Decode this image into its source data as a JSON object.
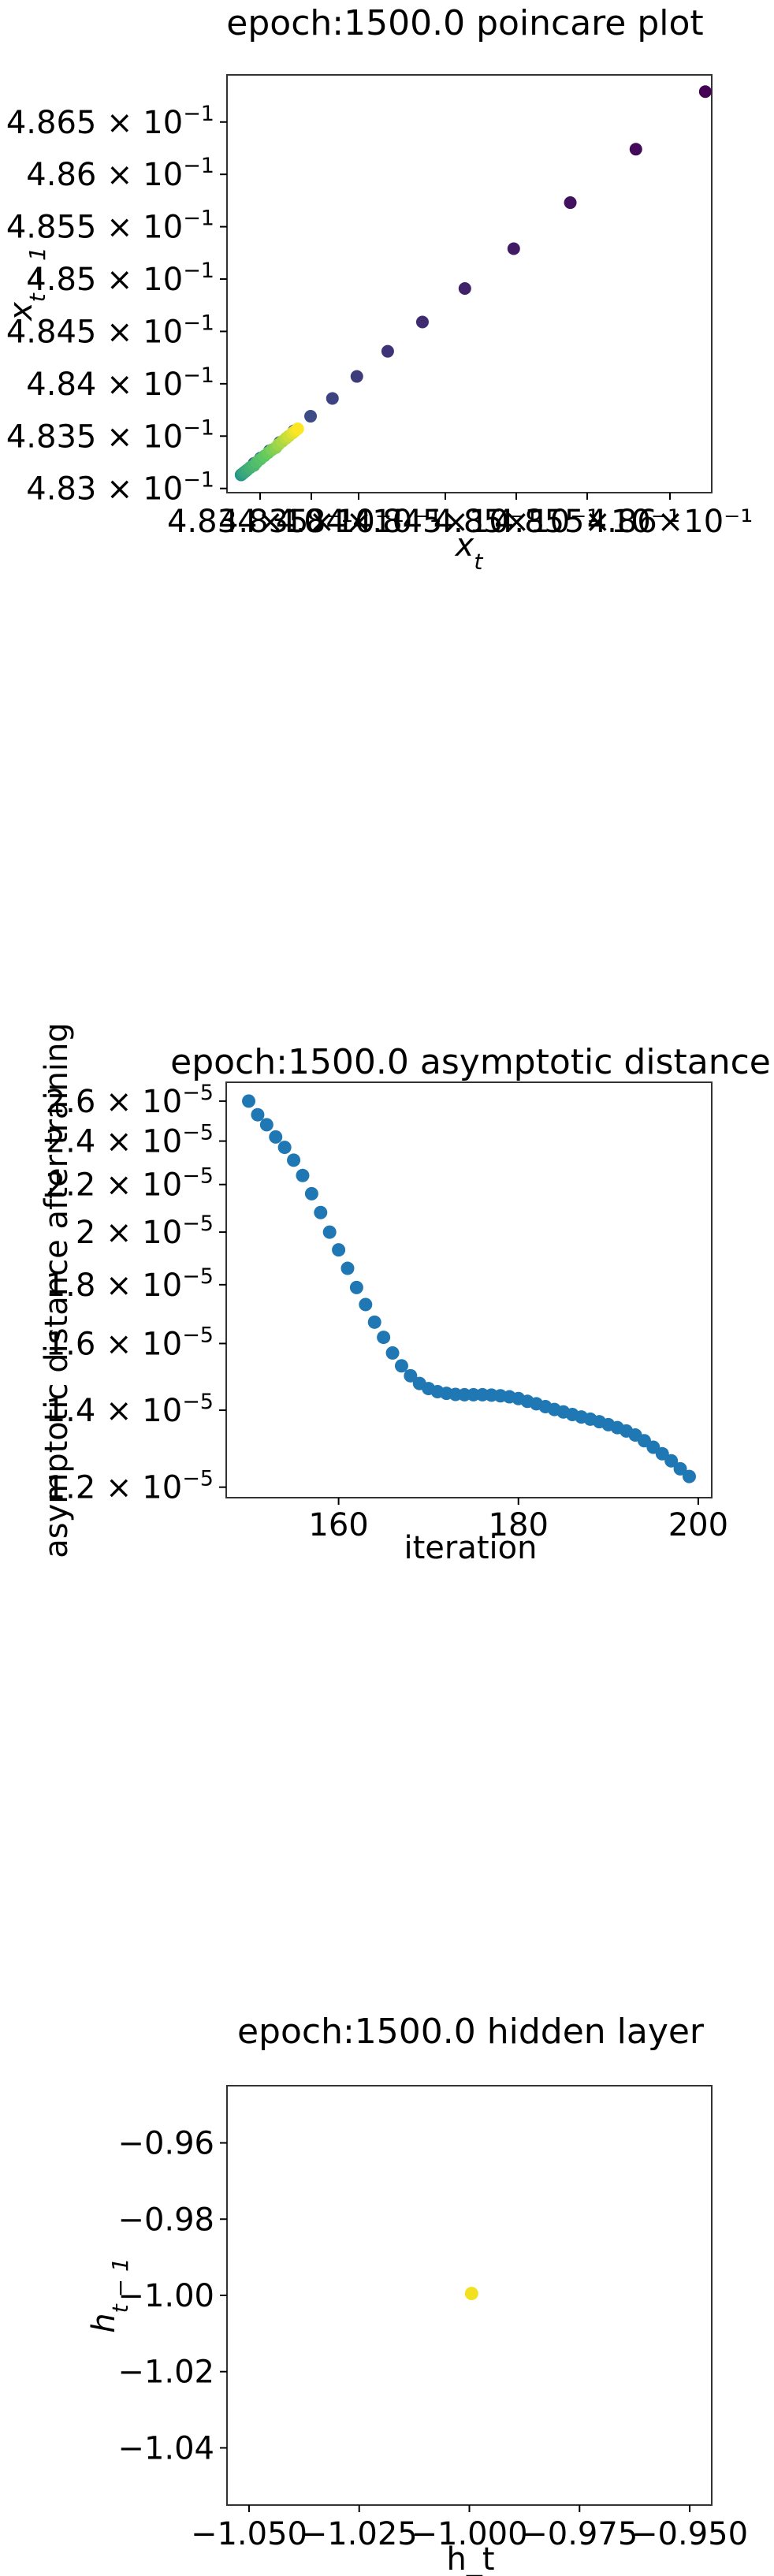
{
  "chart_data": [
    {
      "type": "scatter",
      "title": "epoch:1500.0 poincare plot",
      "xlabel": "x_t",
      "ylabel": "x_{t-1}",
      "x_tick_labels": [
        "4.834×10⁻¹",
        "4.835×10⁻¹",
        "4.84×10⁻¹",
        "4.845×10⁻¹",
        "4.85×10⁻¹",
        "4.855×10⁻¹",
        "4.86×10⁻¹"
      ],
      "y_tick_labels": [
        {
          "mant": "4.83",
          "exp": "−1",
          "value": 0.483
        },
        {
          "mant": "4.835",
          "exp": "−1",
          "value": 0.4835
        },
        {
          "mant": "4.84",
          "exp": "−1",
          "value": 0.484
        },
        {
          "mant": "4.845",
          "exp": "−1",
          "value": 0.4845
        },
        {
          "mant": "4.85",
          "exp": "−1",
          "value": 0.485
        },
        {
          "mant": "4.855",
          "exp": "−1",
          "value": 0.4855
        },
        {
          "mant": "4.86",
          "exp": "−1",
          "value": 0.486
        },
        {
          "mant": "4.865",
          "exp": "−1",
          "value": 0.4865
        }
      ],
      "xlim": [
        0.48305,
        0.48682
      ],
      "ylim": [
        0.48296,
        0.48695
      ],
      "points": [
        [
          0.48677,
          0.48679
        ],
        [
          0.48623,
          0.48624
        ],
        [
          0.48572,
          0.48573
        ],
        [
          0.48528,
          0.48529
        ],
        [
          0.4849,
          0.48491
        ],
        [
          0.48457,
          0.48459
        ],
        [
          0.4843,
          0.48431
        ],
        [
          0.48406,
          0.48407
        ],
        [
          0.48387,
          0.48386
        ],
        [
          0.4837,
          0.48369
        ],
        [
          0.48357,
          0.48355
        ],
        [
          0.48346,
          0.48344
        ],
        [
          0.48338,
          0.48336
        ],
        [
          0.48331,
          0.48329
        ],
        [
          0.48326,
          0.48324
        ],
        [
          0.48323,
          0.4832
        ],
        [
          0.4832,
          0.48317
        ],
        [
          0.48318,
          0.48315
        ],
        [
          0.48317,
          0.48314
        ],
        [
          0.48316,
          0.48313
        ],
        [
          0.48316,
          0.48313
        ],
        [
          0.48317,
          0.48314
        ],
        [
          0.48318,
          0.48315
        ],
        [
          0.48319,
          0.48316
        ],
        [
          0.48321,
          0.48318
        ],
        [
          0.48323,
          0.4832
        ],
        [
          0.48326,
          0.48322
        ],
        [
          0.48328,
          0.48325
        ],
        [
          0.48331,
          0.48328
        ],
        [
          0.48334,
          0.48331
        ],
        [
          0.48337,
          0.48334
        ],
        [
          0.4834,
          0.48337
        ],
        [
          0.48343,
          0.48339
        ],
        [
          0.48345,
          0.48342
        ],
        [
          0.48348,
          0.48345
        ],
        [
          0.48351,
          0.48348
        ],
        [
          0.48353,
          0.4835
        ],
        [
          0.48356,
          0.48353
        ],
        [
          0.48358,
          0.48355
        ],
        [
          0.4836,
          0.48357
        ]
      ],
      "colormap": "viridis"
    },
    {
      "type": "scatter",
      "title": "epoch:1500.0 asymptotic distance",
      "xlabel": "iteration",
      "ylabel": "asymptotic distance after training",
      "yscale": "log",
      "xlim": [
        147.5,
        201.5
      ],
      "ylim": [
        1.175e-05,
        2.7e-05
      ],
      "x_ticks": [
        160,
        180,
        200
      ],
      "y_tick_labels": [
        {
          "mant": "1.2",
          "exp": "−5",
          "value": 1.2e-05
        },
        {
          "mant": "1.4",
          "exp": "−5",
          "value": 1.4e-05
        },
        {
          "mant": "1.6",
          "exp": "−5",
          "value": 1.6e-05
        },
        {
          "mant": "1.8",
          "exp": "−5",
          "value": 1.8e-05
        },
        {
          "mant": "2",
          "exp": "−5",
          "value": 2e-05
        },
        {
          "mant": "2.2",
          "exp": "−5",
          "value": 2.2e-05
        },
        {
          "mant": "2.4",
          "exp": "−5",
          "value": 2.4e-05
        },
        {
          "mant": "2.6",
          "exp": "−5",
          "value": 2.6e-05
        }
      ],
      "x": [
        150,
        151,
        152,
        153,
        154,
        155,
        156,
        157,
        158,
        159,
        160,
        161,
        162,
        163,
        164,
        165,
        166,
        167,
        168,
        169,
        170,
        171,
        172,
        173,
        174,
        175,
        176,
        177,
        178,
        179,
        180,
        181,
        182,
        183,
        184,
        185,
        186,
        187,
        188,
        189,
        190,
        191,
        192,
        193,
        194,
        195,
        196,
        197,
        198,
        199
      ],
      "y": [
        2.6e-05,
        2.53e-05,
        2.48e-05,
        2.42e-05,
        2.37e-05,
        2.31e-05,
        2.24e-05,
        2.16e-05,
        2.08e-05,
        2e-05,
        1.93e-05,
        1.86e-05,
        1.79e-05,
        1.73e-05,
        1.67e-05,
        1.62e-05,
        1.57e-05,
        1.53e-05,
        1.5e-05,
        1.477e-05,
        1.462e-05,
        1.453e-05,
        1.448e-05,
        1.445e-05,
        1.444e-05,
        1.444e-05,
        1.444e-05,
        1.443e-05,
        1.441e-05,
        1.438e-05,
        1.433e-05,
        1.425e-05,
        1.418e-05,
        1.41e-05,
        1.402e-05,
        1.395e-05,
        1.388e-05,
        1.381e-05,
        1.375e-05,
        1.368e-05,
        1.36e-05,
        1.352e-05,
        1.343e-05,
        1.332e-05,
        1.317e-05,
        1.3e-05,
        1.283e-05,
        1.265e-05,
        1.245e-05,
        1.226e-05
      ],
      "color": "#1f77b4"
    },
    {
      "type": "scatter",
      "title": "epoch:1500.0 hidden layer",
      "xlabel": "h_t",
      "ylabel": "h_{t-1}",
      "xlim": [
        -1.055,
        -0.945
      ],
      "ylim": [
        -1.055,
        -0.945
      ],
      "x_ticks": [
        "−1.050",
        "−1.025",
        "−1.000",
        "−0.975",
        "−0.950"
      ],
      "x_tick_values": [
        -1.05,
        -1.025,
        -1.0,
        -0.975,
        -0.95
      ],
      "y_ticks": [
        "−0.96",
        "−0.98",
        "−1.00",
        "−1.02",
        "−1.04"
      ],
      "y_tick_values": [
        -0.96,
        -0.98,
        -1.0,
        -1.02,
        -1.04
      ],
      "points": [
        [
          -0.9995,
          -0.9995
        ]
      ],
      "color": "#f2e11f"
    }
  ]
}
